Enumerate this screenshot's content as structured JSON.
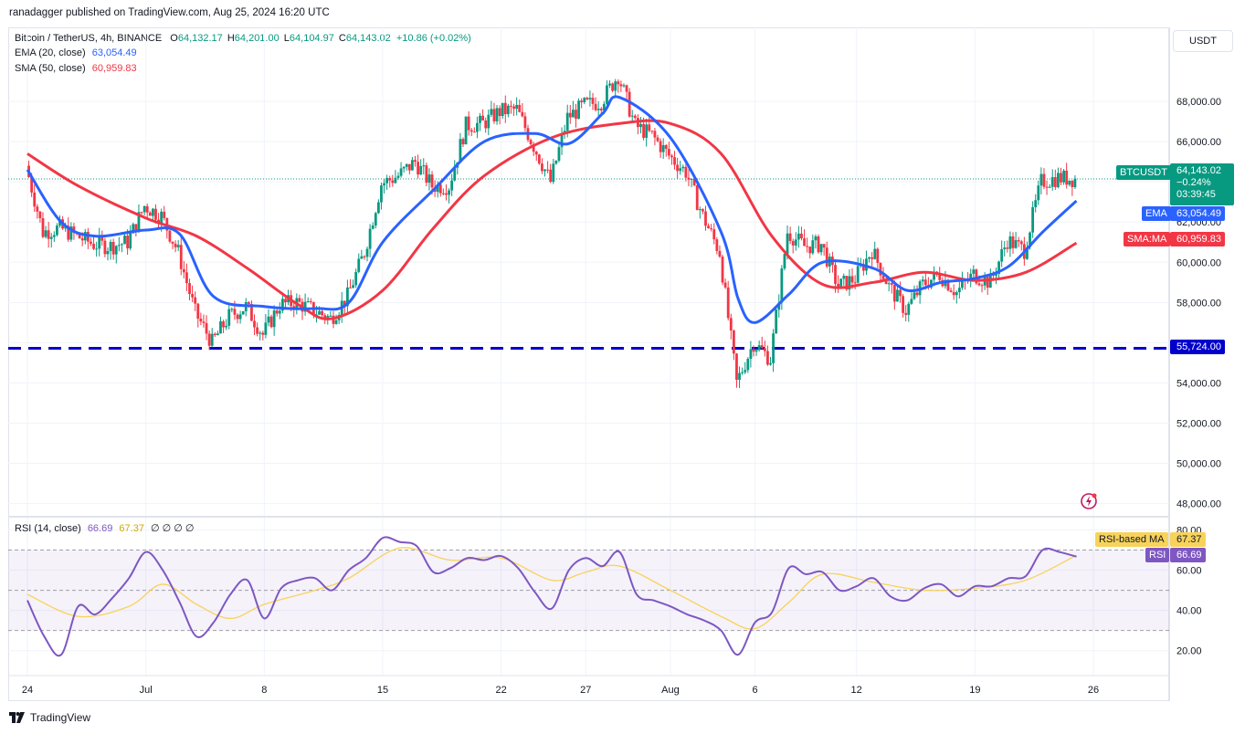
{
  "header": {
    "published": "ranadagger published on TradingView.com, Aug 25, 2024 16:20 UTC",
    "symbol": "Bitcoin / TetherUS, 4h, BINANCE",
    "ohlc": {
      "o": "64,132.17",
      "h": "64,201.00",
      "l": "64,104.97",
      "c": "64,143.02",
      "chg": "+10.86 (+0.02%)"
    },
    "ema_label": "EMA (20, close)",
    "ema_value": "63,054.49",
    "sma_label": "SMA (50, close)",
    "sma_value": "60,959.83"
  },
  "currency": "USDT",
  "tags": {
    "btc_symbol": "BTCUSDT",
    "btc_price": "64,143.02",
    "btc_change": "−0.24%",
    "btc_timer": "03:39:45",
    "ema_label": "EMA",
    "ema_value": "63,054.49",
    "sma_label": "SMA:MA",
    "sma_value": "60,959.83",
    "support_value": "55,724.00",
    "rsi_ma_label": "RSI-based MA",
    "rsi_ma_value": "67.37",
    "rsi_label": "RSI",
    "rsi_value": "66.69"
  },
  "rsi_header": {
    "label": "RSI (14, close)",
    "rsi": "66.69",
    "ma": "67.37",
    "extra": "∅ ∅ ∅ ∅"
  },
  "branding": {
    "name": "TradingView"
  },
  "colors": {
    "up": "#089981",
    "down": "#f23645",
    "ema": "#2962ff",
    "sma": "#f23645",
    "support": "#0000cc",
    "rsi": "#7e57c2",
    "rsi_ma": "#f7d35b"
  },
  "chart_data": [
    {
      "type": "candlestick",
      "title": "Bitcoin / TetherUS, 4h, BINANCE",
      "y_ticks": [
        "48,000.00",
        "50,000.00",
        "52,000.00",
        "54,000.00",
        "56,000.00",
        "58,000.00",
        "60,000.00",
        "62,000.00",
        "64,000.00",
        "66,000.00",
        "68,000.00"
      ],
      "ylim": [
        47800,
        70500
      ],
      "x_ticks": [
        "24",
        "Jul",
        "8",
        "15",
        "22",
        "27",
        "Aug",
        "6",
        "12",
        "19",
        "26"
      ],
      "x_range_dates": [
        "2024-06-24",
        "2024-08-26"
      ],
      "support_level": 55724,
      "last_price": 64143.02,
      "close_path": [
        {
          "date": "2024-06-24",
          "close": 64800
        },
        {
          "date": "2024-06-25",
          "close": 61500
        },
        {
          "date": "2024-06-26",
          "close": 61700
        },
        {
          "date": "2024-06-27",
          "close": 61300
        },
        {
          "date": "2024-06-28",
          "close": 60900
        },
        {
          "date": "2024-06-29",
          "close": 60800
        },
        {
          "date": "2024-06-30",
          "close": 61000
        },
        {
          "date": "2024-07-01",
          "close": 62800
        },
        {
          "date": "2024-07-02",
          "close": 62300
        },
        {
          "date": "2024-07-03",
          "close": 60500
        },
        {
          "date": "2024-07-04",
          "close": 57500
        },
        {
          "date": "2024-07-05",
          "close": 56000
        },
        {
          "date": "2024-07-06",
          "close": 57300
        },
        {
          "date": "2024-07-07",
          "close": 57800
        },
        {
          "date": "2024-07-08",
          "close": 56400
        },
        {
          "date": "2024-07-09",
          "close": 57900
        },
        {
          "date": "2024-07-10",
          "close": 58000
        },
        {
          "date": "2024-07-11",
          "close": 57600
        },
        {
          "date": "2024-07-12",
          "close": 57200
        },
        {
          "date": "2024-07-13",
          "close": 58300
        },
        {
          "date": "2024-07-14",
          "close": 60500
        },
        {
          "date": "2024-07-15",
          "close": 63900
        },
        {
          "date": "2024-07-16",
          "close": 64300
        },
        {
          "date": "2024-07-17",
          "close": 65000
        },
        {
          "date": "2024-07-18",
          "close": 63800
        },
        {
          "date": "2024-07-19",
          "close": 63800
        },
        {
          "date": "2024-07-20",
          "close": 66800
        },
        {
          "date": "2024-07-21",
          "close": 66900
        },
        {
          "date": "2024-07-22",
          "close": 67500
        },
        {
          "date": "2024-07-23",
          "close": 67600
        },
        {
          "date": "2024-07-24",
          "close": 65800
        },
        {
          "date": "2024-07-25",
          "close": 64000
        },
        {
          "date": "2024-07-26",
          "close": 67200
        },
        {
          "date": "2024-07-27",
          "close": 67800
        },
        {
          "date": "2024-07-28",
          "close": 68000
        },
        {
          "date": "2024-07-29",
          "close": 69300
        },
        {
          "date": "2024-07-30",
          "close": 66800
        },
        {
          "date": "2024-07-31",
          "close": 66300
        },
        {
          "date": "2024-08-01",
          "close": 65300
        },
        {
          "date": "2024-08-02",
          "close": 64500
        },
        {
          "date": "2024-08-03",
          "close": 62300
        },
        {
          "date": "2024-08-04",
          "close": 60500
        },
        {
          "date": "2024-08-05",
          "close": 54000
        },
        {
          "date": "2024-08-06",
          "close": 56000
        },
        {
          "date": "2024-08-07",
          "close": 55200
        },
        {
          "date": "2024-08-08",
          "close": 61500
        },
        {
          "date": "2024-08-09",
          "close": 60800
        },
        {
          "date": "2024-08-10",
          "close": 60900
        },
        {
          "date": "2024-08-11",
          "close": 58800
        },
        {
          "date": "2024-08-12",
          "close": 59200
        },
        {
          "date": "2024-08-13",
          "close": 60600
        },
        {
          "date": "2024-08-14",
          "close": 58800
        },
        {
          "date": "2024-08-15",
          "close": 57600
        },
        {
          "date": "2024-08-16",
          "close": 58900
        },
        {
          "date": "2024-08-17",
          "close": 59400
        },
        {
          "date": "2024-08-18",
          "close": 58500
        },
        {
          "date": "2024-08-19",
          "close": 59400
        },
        {
          "date": "2024-08-20",
          "close": 59000
        },
        {
          "date": "2024-08-21",
          "close": 61100
        },
        {
          "date": "2024-08-22",
          "close": 60600
        },
        {
          "date": "2024-08-23",
          "close": 64000
        },
        {
          "date": "2024-08-24",
          "close": 64200
        },
        {
          "date": "2024-08-25",
          "close": 64143
        }
      ],
      "ema_path": [
        {
          "date": "2024-06-24",
          "value": 64600
        },
        {
          "date": "2024-06-26",
          "value": 62000
        },
        {
          "date": "2024-06-28",
          "value": 61300
        },
        {
          "date": "2024-07-01",
          "value": 61600
        },
        {
          "date": "2024-07-03",
          "value": 61400
        },
        {
          "date": "2024-07-05",
          "value": 58300
        },
        {
          "date": "2024-07-08",
          "value": 57800
        },
        {
          "date": "2024-07-11",
          "value": 57700
        },
        {
          "date": "2024-07-13",
          "value": 58000
        },
        {
          "date": "2024-07-15",
          "value": 61000
        },
        {
          "date": "2024-07-18",
          "value": 63600
        },
        {
          "date": "2024-07-21",
          "value": 66000
        },
        {
          "date": "2024-07-24",
          "value": 66400
        },
        {
          "date": "2024-07-26",
          "value": 65900
        },
        {
          "date": "2024-07-28",
          "value": 67400
        },
        {
          "date": "2024-07-29",
          "value": 68200
        },
        {
          "date": "2024-08-01",
          "value": 66200
        },
        {
          "date": "2024-08-04",
          "value": 61500
        },
        {
          "date": "2024-08-05",
          "value": 58200
        },
        {
          "date": "2024-08-06",
          "value": 57000
        },
        {
          "date": "2024-08-08",
          "value": 58400
        },
        {
          "date": "2024-08-10",
          "value": 60000
        },
        {
          "date": "2024-08-13",
          "value": 59700
        },
        {
          "date": "2024-08-15",
          "value": 58600
        },
        {
          "date": "2024-08-17",
          "value": 59000
        },
        {
          "date": "2024-08-19",
          "value": 59200
        },
        {
          "date": "2024-08-21",
          "value": 59800
        },
        {
          "date": "2024-08-23",
          "value": 61500
        },
        {
          "date": "2024-08-25",
          "value": 63054
        }
      ],
      "sma_path": [
        {
          "date": "2024-06-24",
          "value": 65400
        },
        {
          "date": "2024-06-27",
          "value": 63800
        },
        {
          "date": "2024-07-01",
          "value": 62200
        },
        {
          "date": "2024-07-04",
          "value": 61300
        },
        {
          "date": "2024-07-07",
          "value": 59700
        },
        {
          "date": "2024-07-10",
          "value": 57900
        },
        {
          "date": "2024-07-12",
          "value": 57200
        },
        {
          "date": "2024-07-15",
          "value": 58600
        },
        {
          "date": "2024-07-18",
          "value": 61700
        },
        {
          "date": "2024-07-21",
          "value": 64300
        },
        {
          "date": "2024-07-25",
          "value": 66200
        },
        {
          "date": "2024-07-29",
          "value": 66900
        },
        {
          "date": "2024-08-01",
          "value": 66900
        },
        {
          "date": "2024-08-04",
          "value": 65400
        },
        {
          "date": "2024-08-07",
          "value": 61300
        },
        {
          "date": "2024-08-10",
          "value": 58900
        },
        {
          "date": "2024-08-13",
          "value": 59000
        },
        {
          "date": "2024-08-16",
          "value": 59500
        },
        {
          "date": "2024-08-19",
          "value": 59100
        },
        {
          "date": "2024-08-22",
          "value": 59500
        },
        {
          "date": "2024-08-25",
          "value": 60960
        }
      ]
    },
    {
      "type": "line",
      "title": "RSI (14, close)",
      "y_ticks": [
        "20.00",
        "40.00",
        "60.00",
        "80.00"
      ],
      "ylim": [
        9,
        82
      ],
      "bands": [
        30,
        50,
        70
      ],
      "series": [
        {
          "name": "RSI",
          "values": [
            {
              "date": "2024-06-24",
              "value": 45
            },
            {
              "date": "2024-06-25",
              "value": 27
            },
            {
              "date": "2024-06-26",
              "value": 18
            },
            {
              "date": "2024-06-27",
              "value": 42
            },
            {
              "date": "2024-06-28",
              "value": 38
            },
            {
              "date": "2024-06-29",
              "value": 46
            },
            {
              "date": "2024-06-30",
              "value": 56
            },
            {
              "date": "2024-07-01",
              "value": 69
            },
            {
              "date": "2024-07-02",
              "value": 60
            },
            {
              "date": "2024-07-03",
              "value": 44
            },
            {
              "date": "2024-07-04",
              "value": 27
            },
            {
              "date": "2024-07-05",
              "value": 34
            },
            {
              "date": "2024-07-06",
              "value": 48
            },
            {
              "date": "2024-07-07",
              "value": 55
            },
            {
              "date": "2024-07-08",
              "value": 36
            },
            {
              "date": "2024-07-09",
              "value": 51
            },
            {
              "date": "2024-07-10",
              "value": 55
            },
            {
              "date": "2024-07-11",
              "value": 56
            },
            {
              "date": "2024-07-12",
              "value": 50
            },
            {
              "date": "2024-07-13",
              "value": 60
            },
            {
              "date": "2024-07-14",
              "value": 66
            },
            {
              "date": "2024-07-15",
              "value": 76
            },
            {
              "date": "2024-07-16",
              "value": 74
            },
            {
              "date": "2024-07-17",
              "value": 72
            },
            {
              "date": "2024-07-18",
              "value": 59
            },
            {
              "date": "2024-07-19",
              "value": 61
            },
            {
              "date": "2024-07-20",
              "value": 66
            },
            {
              "date": "2024-07-21",
              "value": 65
            },
            {
              "date": "2024-07-22",
              "value": 67
            },
            {
              "date": "2024-07-23",
              "value": 61
            },
            {
              "date": "2024-07-24",
              "value": 49
            },
            {
              "date": "2024-07-25",
              "value": 41
            },
            {
              "date": "2024-07-26",
              "value": 60
            },
            {
              "date": "2024-07-27",
              "value": 66
            },
            {
              "date": "2024-07-28",
              "value": 62
            },
            {
              "date": "2024-07-29",
              "value": 69
            },
            {
              "date": "2024-07-30",
              "value": 48
            },
            {
              "date": "2024-07-31",
              "value": 45
            },
            {
              "date": "2024-08-01",
              "value": 42
            },
            {
              "date": "2024-08-02",
              "value": 38
            },
            {
              "date": "2024-08-03",
              "value": 35
            },
            {
              "date": "2024-08-04",
              "value": 30
            },
            {
              "date": "2024-08-05",
              "value": 18
            },
            {
              "date": "2024-08-06",
              "value": 34
            },
            {
              "date": "2024-08-07",
              "value": 39
            },
            {
              "date": "2024-08-08",
              "value": 61
            },
            {
              "date": "2024-08-09",
              "value": 58
            },
            {
              "date": "2024-08-10",
              "value": 59
            },
            {
              "date": "2024-08-11",
              "value": 50
            },
            {
              "date": "2024-08-12",
              "value": 52
            },
            {
              "date": "2024-08-13",
              "value": 56
            },
            {
              "date": "2024-08-14",
              "value": 47
            },
            {
              "date": "2024-08-15",
              "value": 45
            },
            {
              "date": "2024-08-16",
              "value": 51
            },
            {
              "date": "2024-08-17",
              "value": 53
            },
            {
              "date": "2024-08-18",
              "value": 47
            },
            {
              "date": "2024-08-19",
              "value": 52
            },
            {
              "date": "2024-08-20",
              "value": 52
            },
            {
              "date": "2024-08-21",
              "value": 56
            },
            {
              "date": "2024-08-22",
              "value": 57
            },
            {
              "date": "2024-08-23",
              "value": 70
            },
            {
              "date": "2024-08-24",
              "value": 69
            },
            {
              "date": "2024-08-25",
              "value": 66.69
            }
          ]
        },
        {
          "name": "RSI-based MA",
          "values": [
            {
              "date": "2024-06-24",
              "value": 48
            },
            {
              "date": "2024-06-27",
              "value": 37
            },
            {
              "date": "2024-06-30",
              "value": 42
            },
            {
              "date": "2024-07-02",
              "value": 53
            },
            {
              "date": "2024-07-04",
              "value": 43
            },
            {
              "date": "2024-07-06",
              "value": 36
            },
            {
              "date": "2024-07-08",
              "value": 43
            },
            {
              "date": "2024-07-11",
              "value": 50
            },
            {
              "date": "2024-07-13",
              "value": 56
            },
            {
              "date": "2024-07-16",
              "value": 71
            },
            {
              "date": "2024-07-19",
              "value": 65
            },
            {
              "date": "2024-07-22",
              "value": 66
            },
            {
              "date": "2024-07-25",
              "value": 55
            },
            {
              "date": "2024-07-27",
              "value": 59
            },
            {
              "date": "2024-07-29",
              "value": 62
            },
            {
              "date": "2024-08-01",
              "value": 50
            },
            {
              "date": "2024-08-04",
              "value": 37
            },
            {
              "date": "2024-08-06",
              "value": 31
            },
            {
              "date": "2024-08-08",
              "value": 44
            },
            {
              "date": "2024-08-10",
              "value": 58
            },
            {
              "date": "2024-08-13",
              "value": 54
            },
            {
              "date": "2024-08-16",
              "value": 50
            },
            {
              "date": "2024-08-19",
              "value": 51
            },
            {
              "date": "2024-08-22",
              "value": 55
            },
            {
              "date": "2024-08-25",
              "value": 67.37
            }
          ]
        }
      ]
    }
  ]
}
